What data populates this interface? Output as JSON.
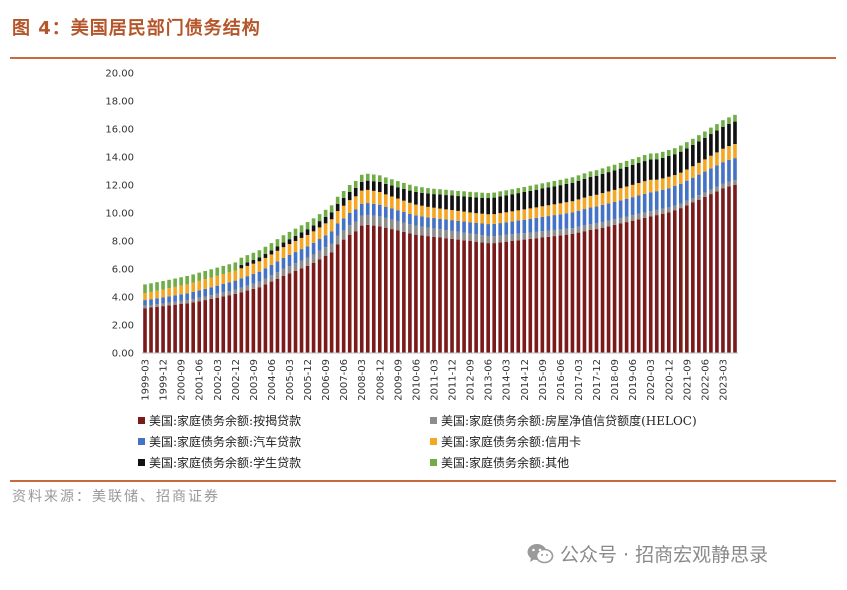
{
  "figure": {
    "title": "图 4：美国居民部门债务结构",
    "source": "资料来源：美联储、招商证券",
    "watermark": "公众号 · 招商宏观静思录"
  },
  "chart_data": {
    "type": "bar",
    "stacked": true,
    "title": "",
    "xlabel": "",
    "ylabel": "",
    "ylim": [
      0,
      20
    ],
    "yticks": [
      "0.00",
      "2.00",
      "4.00",
      "6.00",
      "8.00",
      "10.00",
      "12.00",
      "14.00",
      "16.00",
      "18.00",
      "20.00"
    ],
    "xtick_labels": [
      "1999-03",
      "1999-12",
      "2000-09",
      "2001-06",
      "2002-03",
      "2002-12",
      "2003-09",
      "2004-06",
      "2005-03",
      "2005-12",
      "2006-09",
      "2007-06",
      "2008-03",
      "2008-12",
      "2009-09",
      "2010-06",
      "2011-03",
      "2011-12",
      "2012-09",
      "2013-06",
      "2014-03",
      "2014-12",
      "2015-09",
      "2016-06",
      "2017-03",
      "2017-12",
      "2018-09",
      "2019-06",
      "2020-03",
      "2020-12",
      "2021-09",
      "2022-06",
      "2023-03"
    ],
    "categories": [
      "1999-03",
      "1999-06",
      "1999-09",
      "1999-12",
      "2000-03",
      "2000-06",
      "2000-09",
      "2000-12",
      "2001-03",
      "2001-06",
      "2001-09",
      "2001-12",
      "2002-03",
      "2002-06",
      "2002-09",
      "2002-12",
      "2003-03",
      "2003-06",
      "2003-09",
      "2003-12",
      "2004-03",
      "2004-06",
      "2004-09",
      "2004-12",
      "2005-03",
      "2005-06",
      "2005-09",
      "2005-12",
      "2006-03",
      "2006-06",
      "2006-09",
      "2006-12",
      "2007-03",
      "2007-06",
      "2007-09",
      "2007-12",
      "2008-03",
      "2008-06",
      "2008-09",
      "2008-12",
      "2009-03",
      "2009-06",
      "2009-09",
      "2009-12",
      "2010-03",
      "2010-06",
      "2010-09",
      "2010-12",
      "2011-03",
      "2011-06",
      "2011-09",
      "2011-12",
      "2012-03",
      "2012-06",
      "2012-09",
      "2012-12",
      "2013-03",
      "2013-06",
      "2013-09",
      "2013-12",
      "2014-03",
      "2014-06",
      "2014-09",
      "2014-12",
      "2015-03",
      "2015-06",
      "2015-09",
      "2015-12",
      "2016-03",
      "2016-06",
      "2016-09",
      "2016-12",
      "2017-03",
      "2017-06",
      "2017-09",
      "2017-12",
      "2018-03",
      "2018-06",
      "2018-09",
      "2018-12",
      "2019-03",
      "2019-06",
      "2019-09",
      "2019-12",
      "2020-03",
      "2020-06",
      "2020-09",
      "2020-12",
      "2021-03",
      "2021-06",
      "2021-09",
      "2021-12",
      "2022-03",
      "2022-06",
      "2022-09",
      "2022-12",
      "2023-03",
      "2023-06",
      "2023-09"
    ],
    "series": [
      {
        "name": "美国:家庭债务余额:按揭贷款",
        "color": "#7b1a1a",
        "values": [
          3.2,
          3.25,
          3.3,
          3.35,
          3.4,
          3.45,
          3.5,
          3.55,
          3.62,
          3.7,
          3.78,
          3.86,
          3.95,
          4.04,
          4.13,
          4.22,
          4.34,
          4.46,
          4.58,
          4.7,
          4.9,
          5.1,
          5.3,
          5.5,
          5.68,
          5.86,
          6.04,
          6.22,
          6.45,
          6.7,
          6.95,
          7.2,
          7.75,
          8.1,
          8.45,
          8.7,
          9.1,
          9.15,
          9.1,
          9.05,
          8.95,
          8.85,
          8.75,
          8.65,
          8.55,
          8.45,
          8.4,
          8.35,
          8.3,
          8.25,
          8.2,
          8.15,
          8.1,
          8.05,
          8.0,
          7.95,
          7.9,
          7.85,
          7.85,
          7.9,
          7.95,
          8.0,
          8.05,
          8.1,
          8.15,
          8.2,
          8.25,
          8.3,
          8.35,
          8.4,
          8.45,
          8.5,
          8.6,
          8.7,
          8.8,
          8.85,
          8.95,
          9.05,
          9.15,
          9.25,
          9.35,
          9.45,
          9.55,
          9.65,
          9.75,
          9.85,
          9.95,
          10.05,
          10.2,
          10.35,
          10.55,
          10.75,
          10.95,
          11.15,
          11.35,
          11.55,
          11.75,
          11.9,
          12.0
        ]
      },
      {
        "name": "美国:家庭债务余额:房屋净值信贷额度(HELOC)",
        "color": "#8c8c8c",
        "values": [
          0.18,
          0.18,
          0.19,
          0.19,
          0.2,
          0.21,
          0.22,
          0.23,
          0.24,
          0.25,
          0.26,
          0.27,
          0.28,
          0.29,
          0.3,
          0.31,
          0.33,
          0.35,
          0.37,
          0.39,
          0.42,
          0.45,
          0.48,
          0.51,
          0.53,
          0.55,
          0.57,
          0.58,
          0.59,
          0.6,
          0.61,
          0.62,
          0.64,
          0.66,
          0.68,
          0.69,
          0.7,
          0.71,
          0.71,
          0.71,
          0.7,
          0.69,
          0.68,
          0.67,
          0.66,
          0.65,
          0.63,
          0.61,
          0.6,
          0.59,
          0.58,
          0.57,
          0.56,
          0.55,
          0.54,
          0.53,
          0.52,
          0.51,
          0.5,
          0.5,
          0.49,
          0.48,
          0.47,
          0.46,
          0.46,
          0.45,
          0.45,
          0.44,
          0.44,
          0.43,
          0.43,
          0.42,
          0.42,
          0.42,
          0.41,
          0.41,
          0.41,
          0.41,
          0.4,
          0.4,
          0.4,
          0.39,
          0.39,
          0.39,
          0.38,
          0.37,
          0.36,
          0.35,
          0.34,
          0.33,
          0.33,
          0.32,
          0.32,
          0.32,
          0.32,
          0.32,
          0.33,
          0.33,
          0.34
        ]
      },
      {
        "name": "美国:家庭债务余额:汽车贷款",
        "color": "#4472c4",
        "values": [
          0.4,
          0.41,
          0.42,
          0.43,
          0.45,
          0.46,
          0.47,
          0.48,
          0.5,
          0.52,
          0.54,
          0.56,
          0.58,
          0.6,
          0.62,
          0.64,
          0.66,
          0.68,
          0.7,
          0.72,
          0.73,
          0.74,
          0.76,
          0.78,
          0.79,
          0.8,
          0.81,
          0.82,
          0.83,
          0.84,
          0.85,
          0.86,
          0.86,
          0.86,
          0.87,
          0.87,
          0.86,
          0.85,
          0.84,
          0.83,
          0.8,
          0.79,
          0.77,
          0.75,
          0.73,
          0.73,
          0.73,
          0.73,
          0.74,
          0.75,
          0.76,
          0.77,
          0.78,
          0.79,
          0.8,
          0.81,
          0.83,
          0.85,
          0.87,
          0.88,
          0.9,
          0.92,
          0.94,
          0.96,
          0.98,
          1.0,
          1.02,
          1.04,
          1.06,
          1.08,
          1.1,
          1.12,
          1.14,
          1.16,
          1.18,
          1.2,
          1.22,
          1.23,
          1.24,
          1.25,
          1.27,
          1.29,
          1.31,
          1.33,
          1.35,
          1.34,
          1.35,
          1.37,
          1.39,
          1.41,
          1.43,
          1.45,
          1.47,
          1.49,
          1.52,
          1.53,
          1.55,
          1.57,
          1.58
        ]
      },
      {
        "name": "美国:家庭债务余额:信用卡",
        "color": "#f5a623",
        "values": [
          0.5,
          0.52,
          0.54,
          0.56,
          0.58,
          0.6,
          0.62,
          0.64,
          0.66,
          0.68,
          0.69,
          0.7,
          0.7,
          0.71,
          0.71,
          0.72,
          0.72,
          0.73,
          0.73,
          0.74,
          0.74,
          0.75,
          0.76,
          0.77,
          0.78,
          0.79,
          0.8,
          0.81,
          0.82,
          0.83,
          0.85,
          0.87,
          0.89,
          0.9,
          0.92,
          0.93,
          0.94,
          0.94,
          0.93,
          0.91,
          0.88,
          0.85,
          0.83,
          0.81,
          0.79,
          0.77,
          0.76,
          0.75,
          0.74,
          0.73,
          0.72,
          0.72,
          0.71,
          0.71,
          0.7,
          0.7,
          0.7,
          0.7,
          0.7,
          0.71,
          0.71,
          0.72,
          0.73,
          0.74,
          0.74,
          0.75,
          0.76,
          0.77,
          0.77,
          0.78,
          0.79,
          0.8,
          0.81,
          0.82,
          0.83,
          0.84,
          0.84,
          0.85,
          0.86,
          0.87,
          0.87,
          0.88,
          0.89,
          0.9,
          0.89,
          0.82,
          0.81,
          0.82,
          0.78,
          0.79,
          0.8,
          0.82,
          0.84,
          0.87,
          0.9,
          0.93,
          0.96,
          0.98,
          1.01
        ]
      },
      {
        "name": "美国:家庭债务余额:学生贷款",
        "color": "#111111",
        "values": [
          0.0,
          0.0,
          0.0,
          0.0,
          0.0,
          0.0,
          0.0,
          0.0,
          0.0,
          0.0,
          0.0,
          0.0,
          0.0,
          0.0,
          0.0,
          0.0,
          0.24,
          0.25,
          0.26,
          0.27,
          0.28,
          0.29,
          0.31,
          0.33,
          0.35,
          0.37,
          0.39,
          0.41,
          0.43,
          0.45,
          0.47,
          0.5,
          0.52,
          0.55,
          0.58,
          0.6,
          0.63,
          0.66,
          0.69,
          0.72,
          0.75,
          0.78,
          0.81,
          0.84,
          0.87,
          0.9,
          0.92,
          0.95,
          0.97,
          1.0,
          1.02,
          1.04,
          1.06,
          1.08,
          1.1,
          1.12,
          1.14,
          1.16,
          1.18,
          1.2,
          1.21,
          1.22,
          1.23,
          1.24,
          1.25,
          1.26,
          1.27,
          1.28,
          1.29,
          1.3,
          1.31,
          1.32,
          1.33,
          1.34,
          1.35,
          1.36,
          1.37,
          1.38,
          1.39,
          1.4,
          1.41,
          1.42,
          1.43,
          1.44,
          1.45,
          1.46,
          1.47,
          1.48,
          1.49,
          1.5,
          1.51,
          1.52,
          1.53,
          1.54,
          1.55,
          1.56,
          1.57,
          1.58,
          1.6
        ]
      },
      {
        "name": "美国:家庭债务余额:其他",
        "color": "#70ad47",
        "values": [
          0.62,
          0.62,
          0.61,
          0.61,
          0.6,
          0.6,
          0.6,
          0.6,
          0.59,
          0.59,
          0.59,
          0.59,
          0.59,
          0.58,
          0.58,
          0.58,
          0.52,
          0.52,
          0.52,
          0.52,
          0.52,
          0.52,
          0.52,
          0.52,
          0.52,
          0.51,
          0.51,
          0.51,
          0.5,
          0.5,
          0.5,
          0.5,
          0.5,
          0.5,
          0.5,
          0.5,
          0.5,
          0.49,
          0.48,
          0.47,
          0.46,
          0.45,
          0.44,
          0.43,
          0.42,
          0.41,
          0.4,
          0.39,
          0.38,
          0.38,
          0.38,
          0.37,
          0.37,
          0.37,
          0.37,
          0.37,
          0.36,
          0.36,
          0.36,
          0.36,
          0.36,
          0.36,
          0.36,
          0.36,
          0.37,
          0.37,
          0.37,
          0.37,
          0.38,
          0.38,
          0.38,
          0.39,
          0.39,
          0.39,
          0.4,
          0.4,
          0.4,
          0.41,
          0.41,
          0.41,
          0.42,
          0.42,
          0.42,
          0.43,
          0.43,
          0.43,
          0.43,
          0.43,
          0.43,
          0.44,
          0.44,
          0.44,
          0.45,
          0.45,
          0.46,
          0.46,
          0.47,
          0.47,
          0.48
        ]
      }
    ],
    "legend_position": "bottom"
  }
}
